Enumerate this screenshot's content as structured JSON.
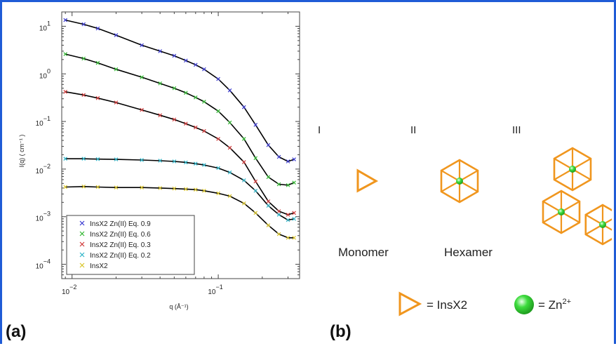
{
  "panel_a": {
    "label": "(a)",
    "chart_data": {
      "type": "scatter",
      "xlabel": "q (Å⁻¹)",
      "ylabel": "I(q) ( cm⁻¹ )",
      "xscale": "log",
      "yscale": "log",
      "xlim": [
        0.0085,
        0.36
      ],
      "ylim": [
        5e-05,
        20
      ],
      "x_ticks": [
        {
          "value": 0.01,
          "base": "10",
          "exp": "−2"
        },
        {
          "value": 0.1,
          "base": "10",
          "exp": "−1"
        }
      ],
      "y_ticks": [
        {
          "value": 10,
          "base": "10",
          "exp": "1"
        },
        {
          "value": 1,
          "base": "10",
          "exp": "0"
        },
        {
          "value": 0.1,
          "base": "10",
          "exp": "−1"
        },
        {
          "value": 0.01,
          "base": "10",
          "exp": "−2"
        },
        {
          "value": 0.001,
          "base": "10",
          "exp": "−3"
        },
        {
          "value": 0.0001,
          "base": "10",
          "exp": "−4"
        }
      ],
      "grid": false,
      "legend_position": "bottom-left",
      "fit_color": "#000000",
      "series": [
        {
          "name": "InsX2 Zn(II) Eq. 0.9",
          "color": "#3a3ad0",
          "marker": "x",
          "x": [
            0.009,
            0.012,
            0.015,
            0.02,
            0.03,
            0.04,
            0.05,
            0.06,
            0.07,
            0.08,
            0.1,
            0.12,
            0.15,
            0.18,
            0.22,
            0.26,
            0.3,
            0.33
          ],
          "y": [
            13.5,
            11.0,
            9.0,
            6.5,
            4.0,
            3.0,
            2.4,
            1.9,
            1.55,
            1.25,
            0.78,
            0.45,
            0.2,
            0.085,
            0.032,
            0.018,
            0.0145,
            0.016
          ]
        },
        {
          "name": "InsX2 Zn(II) Eq. 0.6",
          "color": "#33b733",
          "marker": "x",
          "x": [
            0.009,
            0.012,
            0.015,
            0.02,
            0.03,
            0.04,
            0.05,
            0.06,
            0.07,
            0.08,
            0.1,
            0.12,
            0.15,
            0.18,
            0.22,
            0.26,
            0.3,
            0.33
          ],
          "y": [
            2.6,
            2.1,
            1.7,
            1.25,
            0.85,
            0.63,
            0.5,
            0.4,
            0.32,
            0.26,
            0.165,
            0.095,
            0.043,
            0.017,
            0.0068,
            0.0048,
            0.0046,
            0.0052
          ]
        },
        {
          "name": "InsX2 Zn(II) Eq. 0.3",
          "color": "#d03a3a",
          "marker": "x",
          "x": [
            0.009,
            0.012,
            0.015,
            0.02,
            0.03,
            0.04,
            0.05,
            0.06,
            0.07,
            0.08,
            0.1,
            0.12,
            0.15,
            0.18,
            0.22,
            0.26,
            0.3,
            0.33
          ],
          "y": [
            0.42,
            0.36,
            0.31,
            0.25,
            0.175,
            0.135,
            0.11,
            0.09,
            0.075,
            0.063,
            0.043,
            0.028,
            0.014,
            0.0055,
            0.0021,
            0.0013,
            0.0011,
            0.0012
          ]
        },
        {
          "name": "InsX2 Zn(II) Eq. 0.2",
          "color": "#2fb5c9",
          "marker": "x",
          "x": [
            0.009,
            0.012,
            0.015,
            0.02,
            0.03,
            0.04,
            0.05,
            0.06,
            0.07,
            0.08,
            0.1,
            0.12,
            0.15,
            0.18,
            0.22,
            0.26,
            0.3,
            0.33
          ],
          "y": [
            0.0165,
            0.0165,
            0.0162,
            0.016,
            0.0155,
            0.015,
            0.0145,
            0.0138,
            0.013,
            0.0122,
            0.0105,
            0.0085,
            0.0058,
            0.0035,
            0.0017,
            0.0011,
            0.00085,
            0.0009
          ]
        },
        {
          "name": "InsX2",
          "color": "#d9c429",
          "marker": "x",
          "x": [
            0.009,
            0.012,
            0.015,
            0.02,
            0.03,
            0.04,
            0.05,
            0.06,
            0.07,
            0.08,
            0.1,
            0.12,
            0.15,
            0.18,
            0.22,
            0.26,
            0.3,
            0.33
          ],
          "y": [
            0.0042,
            0.0043,
            0.0042,
            0.0041,
            0.0041,
            0.004,
            0.0039,
            0.0038,
            0.0037,
            0.0035,
            0.0031,
            0.0027,
            0.0019,
            0.0012,
            0.00066,
            0.00043,
            0.00036,
            0.00036
          ]
        }
      ]
    }
  },
  "panel_b": {
    "label": "(b)",
    "stage_labels": [
      "I",
      "II",
      "III"
    ],
    "names": {
      "monomer": "Monomer",
      "hexamer": "Hexamer"
    },
    "legend": {
      "insx2": "= InsX2",
      "zn_prefix": "= Zn",
      "zn_sup": "2+"
    },
    "colors": {
      "insx2": "#f0961e",
      "zn": "#3ddc3d"
    }
  }
}
